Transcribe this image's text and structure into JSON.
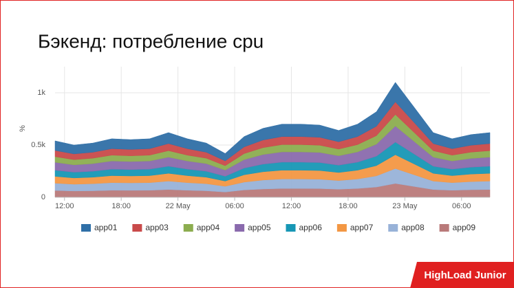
{
  "slide_title": "Бэкенд: потребление cpu",
  "brand": "HighLoad Junior",
  "chart_data": {
    "type": "stacked_area",
    "y_label": "%",
    "x": [
      11,
      13,
      15,
      17,
      19,
      21,
      23,
      25,
      27,
      29,
      31,
      33,
      35,
      37,
      39,
      41,
      43,
      45,
      47,
      49,
      51,
      53,
      55,
      57
    ],
    "xlim": [
      11,
      57
    ],
    "xticks": [
      {
        "value": 12,
        "label": "12:00"
      },
      {
        "value": 18,
        "label": "18:00"
      },
      {
        "value": 24,
        "label": "22 May"
      },
      {
        "value": 30,
        "label": "06:00"
      },
      {
        "value": 36,
        "label": "12:00"
      },
      {
        "value": 42,
        "label": "18:00"
      },
      {
        "value": 48,
        "label": "23 May"
      },
      {
        "value": 54,
        "label": "06:00"
      }
    ],
    "ylim": [
      0,
      1250
    ],
    "yticks": [
      0,
      {
        "value": 500,
        "label": "0.5k"
      },
      {
        "value": 1000,
        "label": "1k"
      }
    ],
    "grid": true,
    "series": [
      {
        "name": "app01",
        "color": "#2f6fa7",
        "values": [
          92,
          85,
          88,
          95,
          94,
          95,
          105,
          95,
          88,
          71,
          99,
          112,
          119,
          119,
          117,
          109,
          119,
          139,
          187,
          146,
          105,
          95,
          102,
          105
        ]
      },
      {
        "name": "app03",
        "color": "#c94a4a",
        "values": [
          59,
          55,
          57,
          62,
          61,
          62,
          68,
          62,
          57,
          46,
          64,
          73,
          77,
          77,
          76,
          70,
          77,
          90,
          121,
          95,
          68,
          62,
          66,
          68
        ]
      },
      {
        "name": "app04",
        "color": "#8cad4f",
        "values": [
          54,
          50,
          52,
          56,
          55,
          56,
          62,
          56,
          52,
          42,
          58,
          66,
          70,
          70,
          69,
          64,
          70,
          82,
          110,
          86,
          62,
          56,
          60,
          62
        ]
      },
      {
        "name": "app05",
        "color": "#8a6aad",
        "values": [
          76,
          70,
          73,
          78,
          77,
          78,
          87,
          78,
          73,
          59,
          81,
          92,
          98,
          98,
          97,
          90,
          98,
          115,
          154,
          120,
          87,
          78,
          84,
          87
        ]
      },
      {
        "name": "app06",
        "color": "#1797b5",
        "values": [
          59,
          55,
          57,
          62,
          61,
          62,
          68,
          62,
          57,
          46,
          64,
          73,
          77,
          77,
          76,
          70,
          77,
          90,
          121,
          95,
          68,
          62,
          66,
          68
        ]
      },
      {
        "name": "app07",
        "color": "#f39743",
        "values": [
          65,
          60,
          62,
          67,
          66,
          67,
          74,
          67,
          62,
          50,
          70,
          79,
          84,
          84,
          83,
          77,
          84,
          98,
          132,
          103,
          74,
          67,
          72,
          74
        ]
      },
      {
        "name": "app08",
        "color": "#98b2d8",
        "values": [
          70,
          65,
          68,
          73,
          72,
          73,
          81,
          73,
          68,
          55,
          75,
          86,
          91,
          91,
          90,
          83,
          91,
          107,
          143,
          112,
          81,
          73,
          78,
          81
        ]
      },
      {
        "name": "app09",
        "color": "#b97a7a",
        "values": [
          65,
          60,
          62,
          67,
          66,
          67,
          74,
          67,
          62,
          50,
          70,
          79,
          84,
          84,
          83,
          77,
          84,
          98,
          132,
          103,
          74,
          67,
          72,
          74
        ]
      }
    ]
  }
}
